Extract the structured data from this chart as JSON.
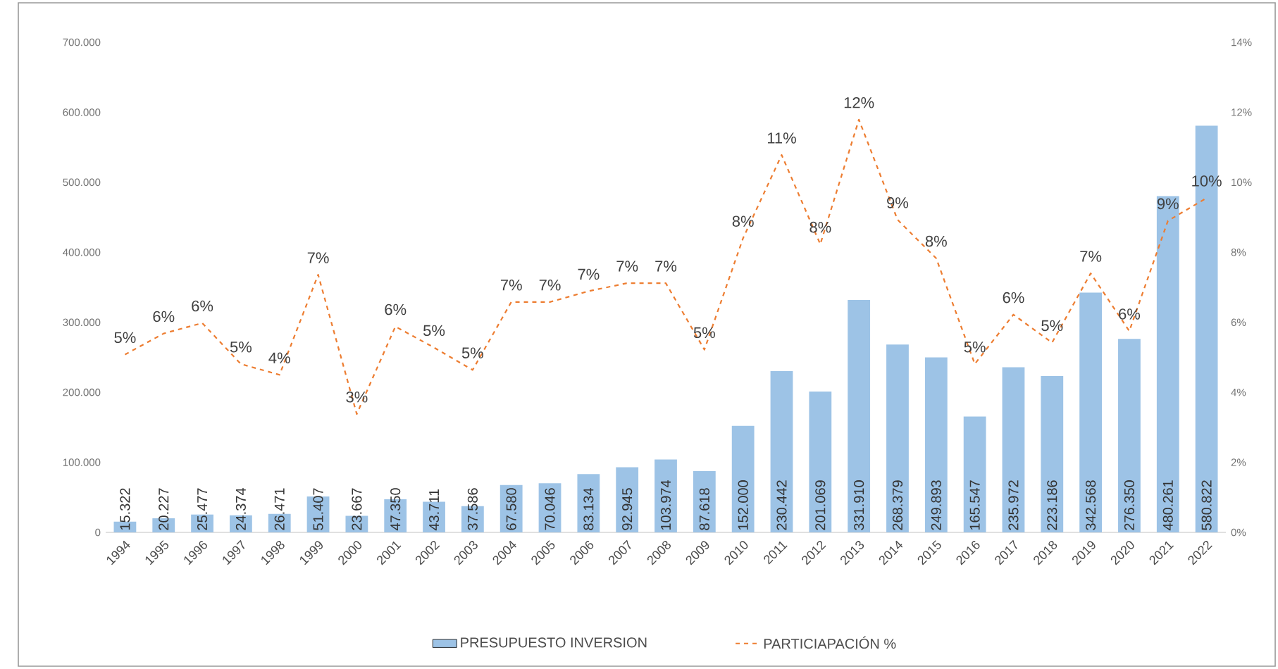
{
  "chart_data": {
    "type": "bar",
    "categories": [
      "1994",
      "1995",
      "1996",
      "1997",
      "1998",
      "1999",
      "2000",
      "2001",
      "2002",
      "2003",
      "2004",
      "2005",
      "2006",
      "2007",
      "2008",
      "2009",
      "2010",
      "2011",
      "2012",
      "2013",
      "2014",
      "2015",
      "2016",
      "2017",
      "2018",
      "2019",
      "2020",
      "2021",
      "2022"
    ],
    "series": [
      {
        "name": "PRESUPUESTO INVERSION",
        "color": "#9dc3e6",
        "values": [
          15322,
          20227,
          25477,
          24374,
          26471,
          51407,
          23667,
          47350,
          43711,
          37586,
          67580,
          70046,
          83134,
          92945,
          103974,
          87618,
          152000,
          230442,
          201069,
          331910,
          268379,
          249893,
          165547,
          235972,
          223186,
          342568,
          276350,
          480261,
          580822
        ],
        "value_labels": [
          "15.322",
          "20.227",
          "25.477",
          "24.374",
          "26.471",
          "51.407",
          "23.667",
          "47.350",
          "43.711",
          "37.586",
          "67.580",
          "70.046",
          "83.134",
          "92.945",
          "103.974",
          "87.618",
          "152.000",
          "230.442",
          "201.069",
          "331.910",
          "268.379",
          "249.893",
          "165.547",
          "235.972",
          "223.186",
          "342.568",
          "276.350",
          "480.261",
          "580.822"
        ]
      },
      {
        "name": "PARTICIAPACIÓN %",
        "type": "line",
        "axis": "y2",
        "line_style": "dashed",
        "color": "#ed7d31",
        "values": [
          5.08,
          5.68,
          5.98,
          4.81,
          4.5,
          7.36,
          3.38,
          5.88,
          5.28,
          4.64,
          6.58,
          6.58,
          6.89,
          7.12,
          7.12,
          5.22,
          8.4,
          10.78,
          8.23,
          11.79,
          8.93,
          7.83,
          4.81,
          6.22,
          5.42,
          7.4,
          5.75,
          8.9,
          9.55
        ],
        "value_labels": [
          "5%",
          "6%",
          "6%",
          "5%",
          "4%",
          "7%",
          "3%",
          "6%",
          "5%",
          "5%",
          "7%",
          "7%",
          "7%",
          "7%",
          "7%",
          "5%",
          "8%",
          "11%",
          "8%",
          "12%",
          "9%",
          "8%",
          "5%",
          "6%",
          "5%",
          "7%",
          "6%",
          "9%",
          "10%"
        ]
      }
    ],
    "ylim": [
      0,
      700000
    ],
    "yticks": [
      {
        "value": 0,
        "label": "0"
      },
      {
        "value": 100000,
        "label": "100.000"
      },
      {
        "value": 200000,
        "label": "200.000"
      },
      {
        "value": 300000,
        "label": "300.000"
      },
      {
        "value": 400000,
        "label": "400.000"
      },
      {
        "value": 500000,
        "label": "500.000"
      },
      {
        "value": 600000,
        "label": "600.000"
      },
      {
        "value": 700000,
        "label": "700.000"
      }
    ],
    "y2lim": [
      0,
      14
    ],
    "y2ticks": [
      {
        "value": 0,
        "label": "0%"
      },
      {
        "value": 2,
        "label": "2%"
      },
      {
        "value": 4,
        "label": "4%"
      },
      {
        "value": 6,
        "label": "6%"
      },
      {
        "value": 8,
        "label": "8%"
      },
      {
        "value": 10,
        "label": "10%"
      },
      {
        "value": 12,
        "label": "12%"
      },
      {
        "value": 14,
        "label": "14%"
      }
    ],
    "legend": "bottom",
    "grid": false
  }
}
